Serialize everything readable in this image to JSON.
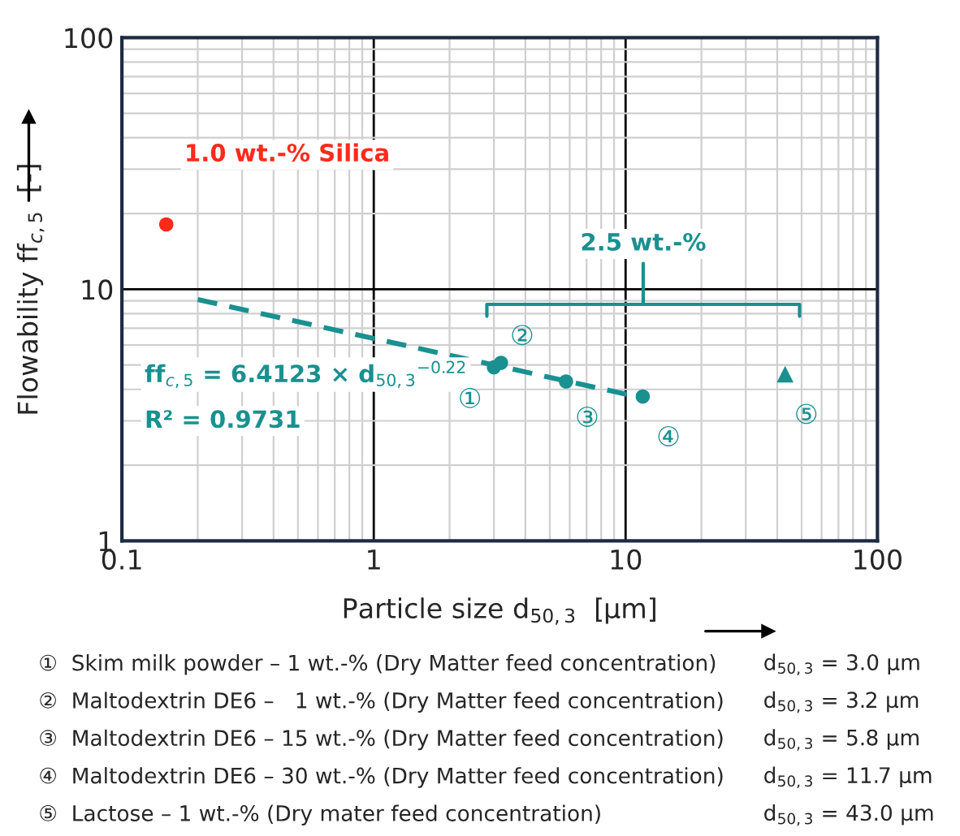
{
  "chart_data": {
    "type": "scatter",
    "xlabel": "Particle size d$_{50,3}$  [µm]",
    "ylabel": "Flowability ff$_{c,5}$  [-]",
    "log": "xy",
    "xlim": [
      0.1,
      100
    ],
    "ylim": [
      1,
      100
    ],
    "xticks": [
      0.1,
      1,
      10,
      100
    ],
    "yticks": [
      1,
      10,
      100
    ],
    "grid": true,
    "legend": false,
    "series": [
      {
        "color": "#ff2a1a",
        "marker": "circle",
        "x": [
          0.15
        ],
        "values": [
          18.1
        ]
      },
      {
        "type": "line",
        "color": "#1a9090",
        "marker": "none",
        "line_style": "dashed",
        "x": [
          0.2,
          11.7
        ],
        "values": [
          9.1,
          3.7
        ]
      },
      {
        "color": "#1a9090",
        "marker": "circle",
        "x": [
          3.0,
          3.2,
          5.8,
          11.7
        ],
        "values": [
          4.9,
          5.1,
          4.3,
          3.75
        ]
      },
      {
        "color": "#1a9090",
        "marker": "triangle",
        "x": [
          43.0
        ],
        "values": [
          4.6
        ]
      }
    ],
    "annotations": [
      {
        "text": "1.0 wt.-% Silica",
        "x": 0.15,
        "y": 18.1
      },
      "2.5 wt.-%",
      "ff$_{c,5}$ = 6.4123 × d$_{50,3}$$^{−0.22}$",
      "R² = 0.9731",
      {
        "text": "①",
        "x": 3.0,
        "y": 4.9
      },
      {
        "text": "②",
        "x": 3.2,
        "y": 5.1
      },
      {
        "text": "③",
        "x": 5.8,
        "y": 4.3
      },
      {
        "text": "④",
        "x": 11.7,
        "y": 3.75
      },
      {
        "text": "⑤",
        "x": 43.0,
        "y": 4.6
      },
      "①  Skim milk powder – 1 wt.-% (Dry Matter feed concentration)",
      "②  Maltodextrin DE6 –   1 wt.-% (Dry Matter feed concentration)",
      "③  Maltodextrin DE6 – 15 wt.-% (Dry Matter feed concentration)",
      "④  Maltodextrin DE6 – 30 wt.-% (Dry Matter feed concentration)",
      "⑤  Lactose – 1 wt.-% (Dry mater feed concentration)",
      "d$_{50,3}$ = 3.0 µm",
      "d$_{50,3}$ = 3.2 µm",
      "d$_{50,3}$ = 5.8 µm",
      "d$_{50,3}$ = 11.7 µm",
      "d$_{50,3}$ = 43.0 µm"
    ]
  }
}
